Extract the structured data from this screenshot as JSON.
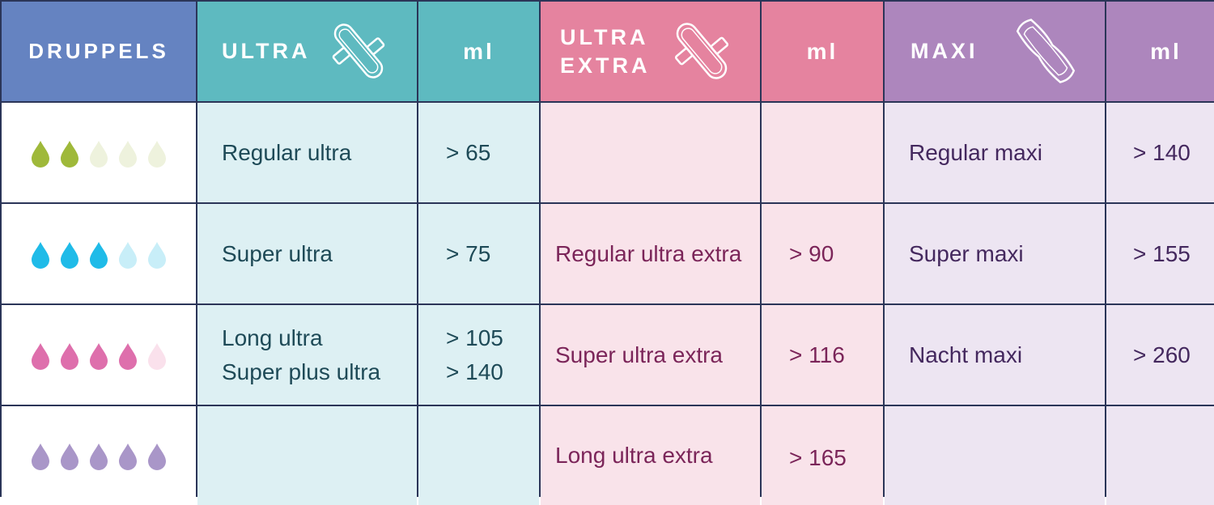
{
  "header": {
    "druppels": "DRUPPELS",
    "ultra": "ULTRA",
    "ultra_ml": "ml",
    "ultra_extra_line1": "ULTRA",
    "ultra_extra_line2": "EXTRA",
    "ultra_extra_ml": "ml",
    "maxi": "MAXI",
    "maxi_ml": "ml"
  },
  "icons": {
    "ultra_pad": "ultra-pad-icon",
    "ultra_extra_pad": "ultra-extra-pad-icon",
    "maxi_pad": "maxi-pad-icon",
    "drop": "drop-icon"
  },
  "colors": {
    "header_druppels": "#6583c1",
    "header_ultra": "#5ebac0",
    "header_ultra_extra": "#e5839f",
    "header_maxi": "#ad86bd",
    "grid_lines": "#2b3558"
  },
  "rows": [
    {
      "drops": {
        "filled": 2,
        "total": 5,
        "color": "#9fb93a",
        "light": "#eef2dd"
      },
      "ultra": [
        "Regular ultra"
      ],
      "ultra_ml": [
        "> 65"
      ],
      "ultra_extra": [],
      "ultra_extra_ml": [],
      "maxi": "Regular maxi",
      "maxi_ml": "> 140"
    },
    {
      "drops": {
        "filled": 3,
        "total": 5,
        "color": "#1fbbe8",
        "light": "#c8eef8"
      },
      "ultra": [
        "Super ultra"
      ],
      "ultra_ml": [
        "> 75"
      ],
      "ultra_extra": [
        "Regular ultra extra"
      ],
      "ultra_extra_ml": [
        "> 90"
      ],
      "maxi": "Super maxi",
      "maxi_ml": "> 155"
    },
    {
      "drops": {
        "filled": 4,
        "total": 5,
        "color": "#de6fac",
        "light": "#fae1ec"
      },
      "ultra": [
        "Long ultra",
        "Super plus ultra"
      ],
      "ultra_ml": [
        "> 105",
        "> 140"
      ],
      "ultra_extra": [
        "Super ultra extra"
      ],
      "ultra_extra_ml": [
        "> 116"
      ],
      "maxi": "Nacht maxi",
      "maxi_ml": "> 260"
    },
    {
      "drops": {
        "filled": 5,
        "total": 5,
        "color": "#a996c8",
        "light": "#e8e0f2"
      },
      "ultra": [],
      "ultra_ml": [],
      "ultra_extra": [
        "Long ultra extra"
      ],
      "ultra_extra_ml": [
        "> 165"
      ],
      "maxi": "",
      "maxi_ml": ""
    }
  ]
}
